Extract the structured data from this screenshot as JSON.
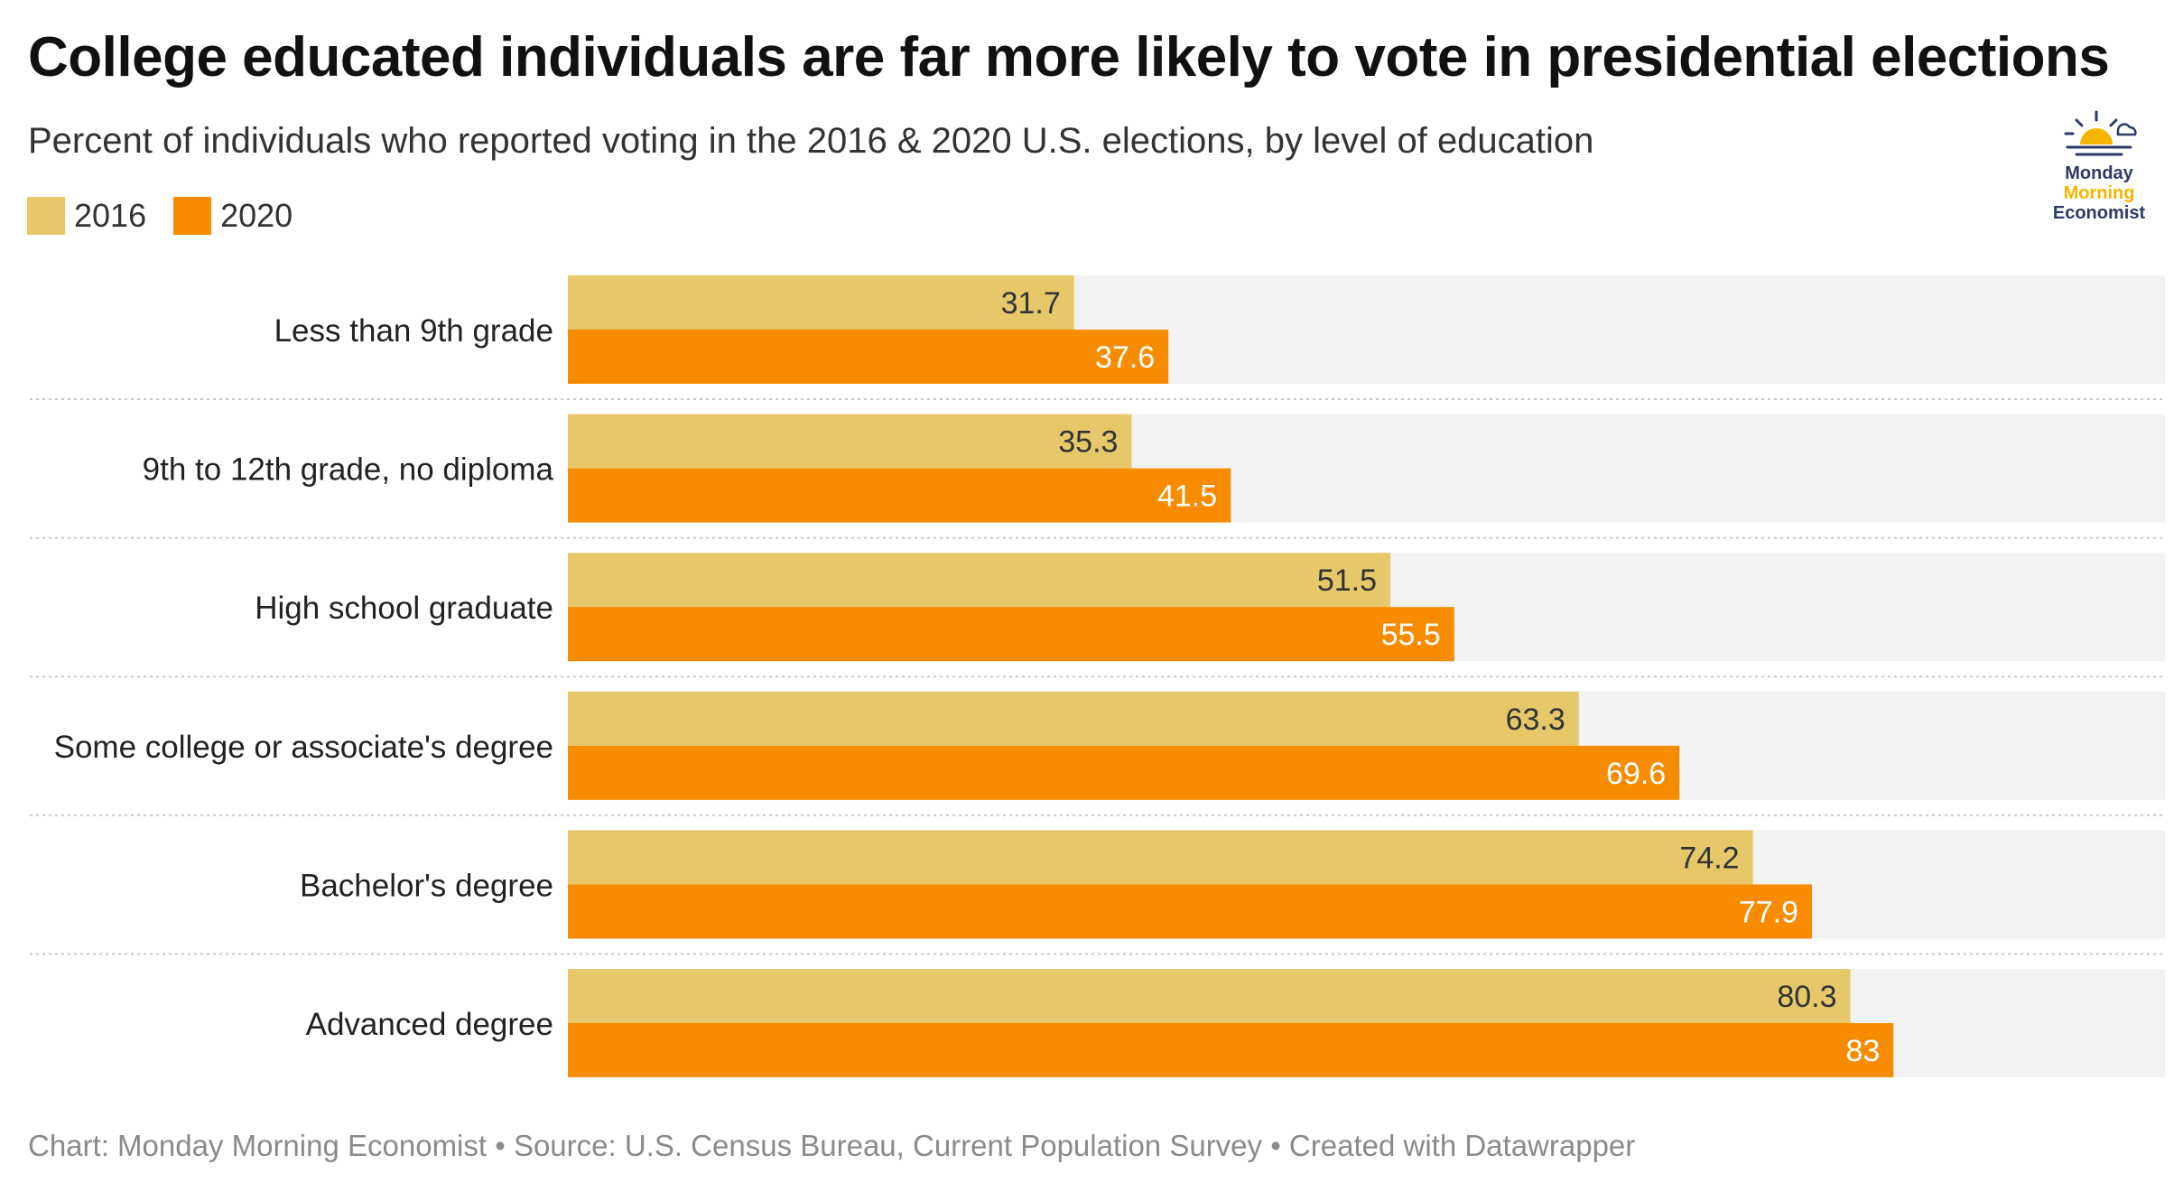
{
  "title": "College educated individuals are far more likely to vote in presidential elections",
  "subtitle": "Percent of individuals who reported voting in the 2016 & 2020 U.S. elections, by level of education",
  "legend": [
    {
      "label": "2016",
      "color": "#e6c86a"
    },
    {
      "label": "2020",
      "color": "#f78c00"
    }
  ],
  "logo": {
    "line1": "Monday",
    "line2": "Morning",
    "line3": "Economist",
    "icon": "sun-rising-icon"
  },
  "footer": "Chart: Monday Morning Economist • Source: U.S. Census Bureau, Current Population Survey  • Created with Datawrapper",
  "colors": {
    "series_2016": "#e6c86a",
    "series_2020": "#f78c00",
    "track": "#f2f2f2",
    "label_dark": "#333333",
    "label_light": "#ffffff"
  },
  "chart_data": {
    "type": "bar",
    "orientation": "horizontal",
    "categories": [
      "Less than 9th grade",
      "9th to 12th grade, no diploma",
      "High school graduate",
      "Some college or associate's degree",
      "Bachelor's degree",
      "Advanced degree"
    ],
    "series": [
      {
        "name": "2016",
        "values": [
          31.7,
          35.3,
          51.5,
          63.3,
          74.2,
          80.3
        ]
      },
      {
        "name": "2020",
        "values": [
          37.6,
          41.5,
          55.5,
          69.6,
          77.9,
          83
        ]
      }
    ],
    "xlim": [
      0,
      100
    ],
    "grid": false,
    "legend_position": "top-left"
  }
}
